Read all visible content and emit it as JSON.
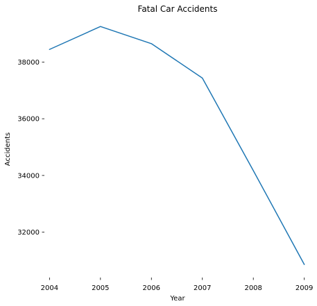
{
  "chart_data": {
    "type": "line",
    "title": "Fatal Car Accidents",
    "xlabel": "Year",
    "ylabel": "Accidents",
    "x": [
      2004,
      2005,
      2006,
      2007,
      2008,
      2009
    ],
    "series": [
      {
        "values": [
          38444,
          39252,
          38648,
          37435,
          34172,
          30862
        ],
        "color": "#1f77b4"
      }
    ],
    "xticks": [
      2004,
      2005,
      2006,
      2007,
      2008,
      2009
    ],
    "yticks": [
      32000,
      34000,
      36000,
      38000
    ],
    "xlim": [
      2003.9,
      2009.1
    ],
    "ylim": [
      30400,
      39600
    ],
    "grid": false,
    "legend": "none"
  }
}
